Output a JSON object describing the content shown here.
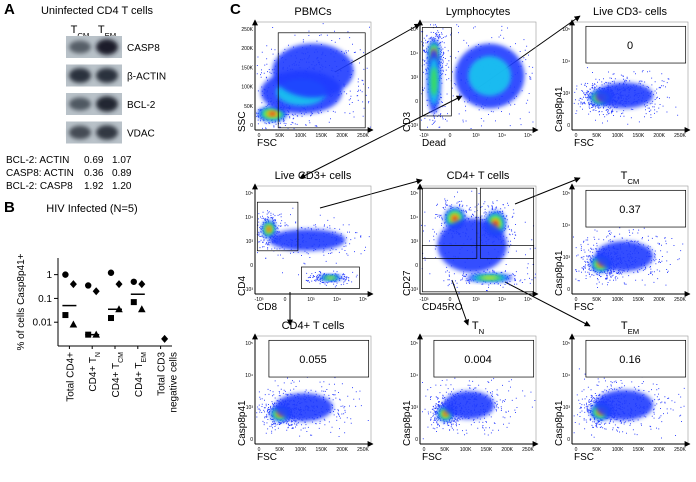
{
  "panel_labels": [
    "A",
    "B",
    "C"
  ],
  "panel_a": {
    "title": "Uninfected CD4 T cells",
    "lanes": [
      {
        "text": "T",
        "sub": "CM"
      },
      {
        "text": "T",
        "sub": "EM"
      }
    ],
    "bands": [
      "CASP8",
      "β-ACTIN",
      "BCL-2",
      "VDAC"
    ],
    "table": {
      "rows": [
        [
          "BCL-2: ACTIN",
          "0.69",
          "1.07"
        ],
        [
          "CASP8: ACTIN",
          "0.36",
          "0.89"
        ],
        [
          "BCL-2: CASP8",
          "1.92",
          "1.20"
        ]
      ]
    }
  },
  "chart_data": {
    "type": "scatter",
    "title": "HIV Infected (N=5)",
    "y_label": "% of cells Casp8p41+",
    "categories": [
      "Total CD4+",
      {
        "text": "CD4+ T",
        "sub": "N"
      },
      {
        "text": "CD4+ T",
        "sub": "CM"
      },
      {
        "text": "CD4+ T",
        "sub": "EM"
      },
      {
        "lines": [
          "Total CD3",
          "negative cells"
        ]
      }
    ],
    "log_y": true,
    "ylim": [
      0.001,
      5
    ],
    "yticks": [
      0.01,
      0.1,
      1
    ],
    "series": [
      {
        "marker": "circle",
        "color": "#000000",
        "values": [
          1,
          0.35,
          1.2,
          0.5,
          null
        ]
      },
      {
        "marker": "diamond",
        "color": "#000000",
        "values": [
          0.4,
          0.2,
          0.4,
          0.4,
          0.002
        ]
      },
      {
        "marker": "square",
        "color": "#000000",
        "values": [
          0.02,
          0.003,
          0.015,
          0.07,
          null
        ]
      },
      {
        "marker": "triangle",
        "color": "#000000",
        "values": [
          0.008,
          0.003,
          0.035,
          0.035,
          null
        ]
      }
    ],
    "median": [
      0.05,
      0.003,
      0.035,
      0.15,
      null
    ]
  },
  "panel_c": {
    "plots": [
      {
        "title": "PBMCs",
        "x_label": "FSC",
        "y_label": "SSC",
        "xticks": [
          "0",
          "50K",
          "100K",
          "150K",
          "200K",
          "250K"
        ],
        "yticks": [
          "0",
          "50K",
          "100K",
          "150K",
          "200K",
          "250K"
        ]
      },
      {
        "title": "Lymphocytes",
        "x_label": "Dead",
        "y_label": "CD3",
        "xticks": [
          "-10³",
          "0",
          "10³",
          "10⁴",
          "10⁵"
        ],
        "yticks": [
          "-10³",
          "0",
          "10³",
          "10⁴",
          "10⁵"
        ]
      },
      {
        "title": "Live CD3- cells",
        "x_label": "FSC",
        "y_label": "Casp8p41",
        "gate": "0",
        "xticks": [
          "0",
          "50K",
          "100K",
          "150K",
          "200K",
          "250K"
        ],
        "yticks": [
          "0",
          "10³",
          "10⁴",
          "10⁵"
        ]
      },
      {
        "title": "Live CD3+ cells",
        "x_label": "CD8",
        "y_label": "CD4",
        "xticks": [
          "-10³",
          "0",
          "10³",
          "10⁴",
          "10⁵"
        ],
        "yticks": [
          "-10³",
          "0",
          "10³",
          "10⁴",
          "10⁵"
        ]
      },
      {
        "title": "CD4+ T cells",
        "x_label": "CD45RO",
        "y_label": "CD27",
        "xticks": [
          "-10³",
          "0",
          "10³",
          "10⁴",
          "10⁵"
        ],
        "yticks": [
          "-10³",
          "0",
          "10³",
          "10⁴",
          "10⁵"
        ]
      },
      {
        "title": {
          "text": "T",
          "sub": "CM"
        },
        "x_label": "FSC",
        "y_label": "Casp8p41",
        "gate": "0.37",
        "xticks": [
          "0",
          "50K",
          "100K",
          "150K",
          "200K",
          "250K"
        ],
        "yticks": [
          "0",
          "10³",
          "10⁴",
          "10⁵"
        ]
      },
      {
        "title": "CD4+ T cells",
        "x_label": "FSC",
        "y_label": "Casp8p41",
        "gate": "0.055",
        "xticks": [
          "0",
          "50K",
          "100K",
          "150K",
          "200K",
          "250K"
        ],
        "yticks": [
          "0",
          "10³",
          "10⁴",
          "10⁵"
        ]
      },
      {
        "title": {
          "text": "T",
          "sub": "N"
        },
        "x_label": "FSC",
        "y_label": "Casp8p41",
        "gate": "0.004",
        "xticks": [
          "0",
          "50K",
          "100K",
          "150K",
          "200K",
          "250K"
        ],
        "yticks": [
          "0",
          "10³",
          "10⁴",
          "10⁵"
        ]
      },
      {
        "title": {
          "text": "T",
          "sub": "EM"
        },
        "x_label": "FSC",
        "y_label": "Casp8p41",
        "gate": "0.16",
        "xticks": [
          "0",
          "50K",
          "100K",
          "150K",
          "200K",
          "250K"
        ],
        "yticks": [
          "0",
          "10³",
          "10⁴",
          "10⁵"
        ]
      }
    ]
  }
}
